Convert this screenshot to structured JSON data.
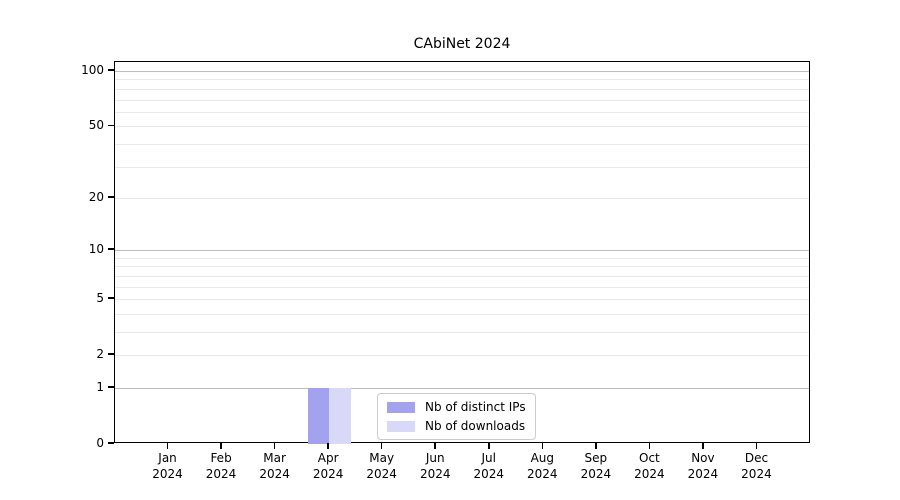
{
  "chart_data": {
    "type": "bar",
    "title": "CAbiNet 2024",
    "xlabel": "",
    "ylabel": "",
    "categories": [
      "Jan 2024",
      "Feb 2024",
      "Mar 2024",
      "Apr 2024",
      "May 2024",
      "Jun 2024",
      "Jul 2024",
      "Aug 2024",
      "Sep 2024",
      "Oct 2024",
      "Nov 2024",
      "Dec 2024"
    ],
    "x_tick_labels": [
      "Jan\n2024",
      "Feb\n2024",
      "Mar\n2024",
      "Apr\n2024",
      "May\n2024",
      "Jun\n2024",
      "Jul\n2024",
      "Aug\n2024",
      "Sep\n2024",
      "Oct\n2024",
      "Nov\n2024",
      "Dec\n2024"
    ],
    "series": [
      {
        "name": "Nb of distinct IPs",
        "color": "#a2a2ee",
        "values": [
          0,
          0,
          0,
          1,
          0,
          0,
          0,
          0,
          0,
          0,
          0,
          0
        ]
      },
      {
        "name": "Nb of downloads",
        "color": "#d8d8f8",
        "values": [
          0,
          0,
          0,
          1,
          0,
          0,
          0,
          0,
          0,
          0,
          0,
          0
        ]
      }
    ],
    "y_axis": {
      "scale": "log1p",
      "tick_values": [
        0,
        1,
        2,
        5,
        10,
        20,
        50,
        100
      ],
      "tick_labels": [
        "0",
        "1",
        "2",
        "5",
        "10",
        "20",
        "50",
        "100"
      ],
      "major_gridlines": [
        1,
        10,
        100
      ],
      "minor_gridlines": [
        2,
        3,
        4,
        5,
        6,
        7,
        8,
        9,
        20,
        30,
        40,
        50,
        60,
        70,
        80,
        90
      ],
      "ylim": [
        0,
        112
      ]
    },
    "legend": {
      "position": "bottom-center",
      "entries": [
        "Nb of distinct IPs",
        "Nb of downloads"
      ]
    },
    "grid": true
  },
  "colors": {
    "major_grid": "#bdbdbd",
    "minor_grid": "#e9e9e9",
    "spine": "#000000",
    "legend_border": "#cccccc",
    "background": "#ffffff"
  }
}
